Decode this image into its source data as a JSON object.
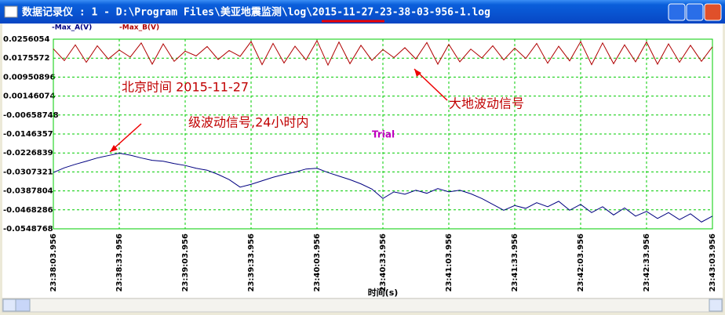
{
  "window": {
    "title": "数据记录仪 : 1 - D:\\Program Files\\美亚地震监测\\log\\2015-11-27-23-38-03-956-1.log"
  },
  "chart_data": {
    "type": "line",
    "xlabel": "时间(s)",
    "annotations": [
      "北京时间 2015-11-27",
      "大地波动信号",
      "级波动信号,24小时内",
      "Trial"
    ],
    "x": [
      0,
      5,
      10,
      15,
      20,
      25,
      30,
      35,
      40,
      45,
      50,
      55,
      60,
      65,
      70,
      75,
      80,
      85,
      90,
      95,
      100,
      105,
      110,
      115,
      120,
      125,
      130,
      135,
      140,
      145,
      150,
      155,
      160,
      165,
      170,
      175,
      180,
      185,
      190,
      195,
      200,
      205,
      210,
      215,
      220,
      225,
      230,
      235,
      240,
      245,
      250,
      255,
      260,
      265,
      270,
      275,
      280,
      285,
      290,
      295,
      300
    ],
    "series": [
      {
        "name": "-Max_A(V)",
        "color": "#000080",
        "values": [
          -0.031,
          -0.029,
          -0.0275,
          -0.0262,
          -0.0248,
          -0.0238,
          -0.0228,
          -0.0236,
          -0.0248,
          -0.0258,
          -0.0262,
          -0.0272,
          -0.028,
          -0.0292,
          -0.03,
          -0.0318,
          -0.034,
          -0.0372,
          -0.036,
          -0.0345,
          -0.033,
          -0.0318,
          -0.0308,
          -0.0295,
          -0.0292,
          -0.031,
          -0.0325,
          -0.034,
          -0.0358,
          -0.038,
          -0.042,
          -0.0392,
          -0.0402,
          -0.0385,
          -0.0398,
          -0.0378,
          -0.0392,
          -0.0385,
          -0.04,
          -0.042,
          -0.0445,
          -0.047,
          -0.045,
          -0.0462,
          -0.0438,
          -0.0455,
          -0.0432,
          -0.047,
          -0.0445,
          -0.048,
          -0.0455,
          -0.049,
          -0.046,
          -0.0495,
          -0.0475,
          -0.0505,
          -0.048,
          -0.051,
          -0.0485,
          -0.052,
          -0.0495
        ]
      },
      {
        "name": "-Max_B(V)",
        "color": "#b00000",
        "values": [
          0.0215,
          0.0165,
          0.0232,
          0.0158,
          0.0228,
          0.0172,
          0.021,
          0.018,
          0.024,
          0.015,
          0.0236,
          0.0162,
          0.0205,
          0.0185,
          0.0225,
          0.017,
          0.0208,
          0.0183,
          0.0246,
          0.0148,
          0.0238,
          0.0155,
          0.0226,
          0.0168,
          0.025,
          0.0146,
          0.0244,
          0.0152,
          0.023,
          0.0166,
          0.0212,
          0.0178,
          0.022,
          0.0172,
          0.0242,
          0.015,
          0.0234,
          0.016,
          0.0214,
          0.0176,
          0.0228,
          0.0168,
          0.0218,
          0.0174,
          0.0238,
          0.0154,
          0.0226,
          0.0164,
          0.0246,
          0.0148,
          0.024,
          0.0152,
          0.0232,
          0.016,
          0.0244,
          0.015,
          0.0236,
          0.0158,
          0.023,
          0.0162,
          0.0224
        ]
      }
    ],
    "xlim": [
      0,
      300
    ],
    "xticks": [
      {
        "value": 0,
        "label": "23:38:03.956"
      },
      {
        "value": 30,
        "label": "23:38:33.956"
      },
      {
        "value": 60,
        "label": "23:39:03.956"
      },
      {
        "value": 90,
        "label": "23:39:33.956"
      },
      {
        "value": 120,
        "label": "23:40:03.956"
      },
      {
        "value": 150,
        "label": "23:40:33.956"
      },
      {
        "value": 180,
        "label": "23:41:03.956"
      },
      {
        "value": 210,
        "label": "23:41:33.956"
      },
      {
        "value": 240,
        "label": "23:42:03.956"
      },
      {
        "value": 270,
        "label": "23:42:33.956"
      },
      {
        "value": 300,
        "label": "23:43:03.956"
      }
    ],
    "ylim": [
      -0.0548768,
      0.0256054
    ],
    "yticks": [
      0.0256054,
      0.0175572,
      0.00950896,
      0.00146074,
      -0.00658748,
      -0.0146357,
      -0.0226839,
      -0.0307321,
      -0.0387804,
      -0.0468286,
      -0.0548768
    ],
    "grid": true
  }
}
